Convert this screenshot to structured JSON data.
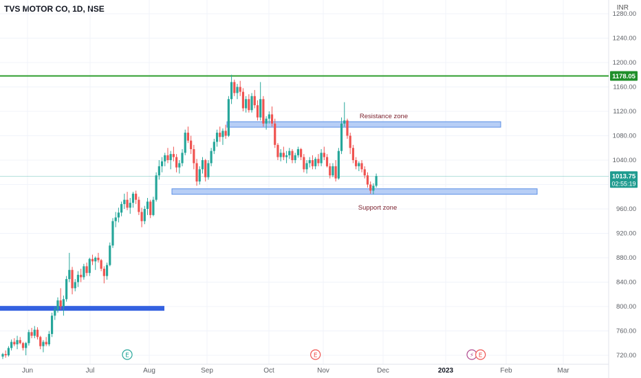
{
  "header": {
    "title": "TVS MOTOR CO, 1D, NSE",
    "currency": "INR"
  },
  "colors": {
    "up": "#26a69a",
    "down": "#ef5350",
    "grid": "#f0f3fa",
    "resistance_line": "#2e9e2e",
    "zone_fill": "#aac6f5",
    "zone_border": "#5b8fe6",
    "blue_line": "#3461e0",
    "text": "#5d6066"
  },
  "markers": [
    {
      "date_index": 43,
      "icon": "earnings-e-icon",
      "label": "E"
    },
    {
      "date_index": 108,
      "icon": "earnings-e-icon",
      "label": "E"
    },
    {
      "date_index": 162,
      "icon": "dividend-bolt-icon",
      "label": "⚡"
    },
    {
      "date_index": 165,
      "icon": "earnings-e-icon",
      "label": "E"
    }
  ],
  "chart_data": {
    "type": "candlestick",
    "title": "TVS MOTOR CO, 1D, NSE",
    "y_unit": "INR",
    "ylim": [
      713,
      1300
    ],
    "x_ticks": [
      "Jun",
      "Jul",
      "Aug",
      "Sep",
      "Oct",
      "Nov",
      "Dec",
      "2023",
      "Feb",
      "Mar"
    ],
    "y_ticks": [
      720,
      760,
      800,
      840,
      880,
      920,
      960,
      1000,
      1040,
      1080,
      1120,
      1160,
      1200,
      1240,
      1280
    ],
    "y_tick_labels": [
      "720.00",
      "760.00",
      "800.00",
      "840.00",
      "880.00",
      "920.00",
      "960.00",
      "",
      "1040.00",
      "1080.00",
      "1120.00",
      "1160.00",
      "1200.00",
      "1240.00",
      "1280.00"
    ],
    "horizontal_lines": [
      {
        "price": 1178.05,
        "label": "1178.05"
      }
    ],
    "current_price": {
      "price": 1013.75,
      "label": "1013.75",
      "countdown": "02:55:19"
    },
    "blue_level_line": {
      "price": 797
    },
    "zones": [
      {
        "label": "Resistance zone",
        "low": 1094,
        "high": 1103
      },
      {
        "label": "Support zone",
        "low": 984,
        "high": 993
      }
    ],
    "candles_ohlc": [
      [
        718,
        724,
        714,
        722
      ],
      [
        722,
        728,
        716,
        720
      ],
      [
        720,
        735,
        718,
        732
      ],
      [
        732,
        746,
        728,
        742
      ],
      [
        742,
        748,
        735,
        738
      ],
      [
        738,
        752,
        730,
        745
      ],
      [
        745,
        750,
        738,
        740
      ],
      [
        740,
        742,
        728,
        732
      ],
      [
        732,
        742,
        720,
        740
      ],
      [
        740,
        762,
        736,
        758
      ],
      [
        758,
        765,
        748,
        752
      ],
      [
        752,
        768,
        748,
        762
      ],
      [
        762,
        766,
        746,
        750
      ],
      [
        750,
        752,
        730,
        735
      ],
      [
        735,
        745,
        725,
        742
      ],
      [
        742,
        750,
        735,
        738
      ],
      [
        738,
        760,
        735,
        755
      ],
      [
        755,
        790,
        750,
        785
      ],
      [
        785,
        800,
        778,
        795
      ],
      [
        795,
        815,
        790,
        810
      ],
      [
        810,
        830,
        795,
        800
      ],
      [
        800,
        818,
        785,
        812
      ],
      [
        812,
        850,
        808,
        845
      ],
      [
        845,
        888,
        840,
        860
      ],
      [
        860,
        865,
        820,
        830
      ],
      [
        830,
        845,
        825,
        840
      ],
      [
        840,
        858,
        832,
        852
      ],
      [
        852,
        862,
        840,
        848
      ],
      [
        848,
        870,
        844,
        866
      ],
      [
        866,
        872,
        850,
        855
      ],
      [
        855,
        880,
        850,
        878
      ],
      [
        878,
        885,
        868,
        874
      ],
      [
        874,
        882,
        860,
        880
      ],
      [
        880,
        888,
        872,
        876
      ],
      [
        876,
        878,
        858,
        862
      ],
      [
        862,
        866,
        838,
        850
      ],
      [
        850,
        872,
        844,
        868
      ],
      [
        868,
        905,
        866,
        900
      ],
      [
        900,
        945,
        896,
        940
      ],
      [
        940,
        955,
        930,
        946
      ],
      [
        946,
        962,
        938,
        954
      ],
      [
        954,
        972,
        948,
        968
      ],
      [
        968,
        985,
        960,
        975
      ],
      [
        975,
        988,
        958,
        962
      ],
      [
        962,
        978,
        952,
        970
      ],
      [
        970,
        988,
        962,
        985
      ],
      [
        985,
        990,
        968,
        975
      ],
      [
        975,
        980,
        950,
        955
      ],
      [
        955,
        962,
        930,
        940
      ],
      [
        940,
        965,
        935,
        960
      ],
      [
        960,
        978,
        950,
        972
      ],
      [
        972,
        975,
        945,
        950
      ],
      [
        950,
        980,
        948,
        975
      ],
      [
        975,
        1020,
        972,
        1015
      ],
      [
        1015,
        1040,
        1008,
        1030
      ],
      [
        1030,
        1045,
        1020,
        1038
      ],
      [
        1038,
        1052,
        1030,
        1048
      ],
      [
        1048,
        1060,
        1035,
        1040
      ],
      [
        1040,
        1055,
        1025,
        1050
      ],
      [
        1050,
        1062,
        1038,
        1045
      ],
      [
        1045,
        1050,
        1020,
        1028
      ],
      [
        1028,
        1040,
        1018,
        1035
      ],
      [
        1035,
        1058,
        1030,
        1052
      ],
      [
        1052,
        1090,
        1048,
        1085
      ],
      [
        1085,
        1095,
        1068,
        1072
      ],
      [
        1072,
        1080,
        1050,
        1058
      ],
      [
        1058,
        1065,
        1025,
        1035
      ],
      [
        1035,
        1042,
        998,
        1005
      ],
      [
        1005,
        1030,
        1000,
        1025
      ],
      [
        1025,
        1045,
        1018,
        1040
      ],
      [
        1040,
        1042,
        1005,
        1012
      ],
      [
        1012,
        1040,
        1008,
        1035
      ],
      [
        1035,
        1060,
        1030,
        1055
      ],
      [
        1055,
        1075,
        1050,
        1070
      ],
      [
        1070,
        1090,
        1062,
        1085
      ],
      [
        1085,
        1095,
        1070,
        1078
      ],
      [
        1078,
        1092,
        1065,
        1088
      ],
      [
        1088,
        1098,
        1075,
        1080
      ],
      [
        1080,
        1145,
        1078,
        1140
      ],
      [
        1140,
        1180,
        1132,
        1168
      ],
      [
        1168,
        1172,
        1145,
        1150
      ],
      [
        1150,
        1165,
        1140,
        1160
      ],
      [
        1160,
        1170,
        1145,
        1152
      ],
      [
        1152,
        1158,
        1120,
        1125
      ],
      [
        1125,
        1145,
        1118,
        1140
      ],
      [
        1140,
        1148,
        1118,
        1122
      ],
      [
        1122,
        1150,
        1118,
        1145
      ],
      [
        1145,
        1155,
        1125,
        1130
      ],
      [
        1130,
        1138,
        1105,
        1110
      ],
      [
        1110,
        1168,
        1105,
        1140
      ],
      [
        1140,
        1145,
        1095,
        1100
      ],
      [
        1100,
        1112,
        1090,
        1108
      ],
      [
        1108,
        1120,
        1100,
        1115
      ],
      [
        1115,
        1128,
        1095,
        1100
      ],
      [
        1100,
        1108,
        1060,
        1065
      ],
      [
        1065,
        1068,
        1040,
        1045
      ],
      [
        1045,
        1058,
        1038,
        1052
      ],
      [
        1052,
        1062,
        1040,
        1045
      ],
      [
        1045,
        1055,
        1035,
        1048
      ],
      [
        1048,
        1060,
        1042,
        1055
      ],
      [
        1055,
        1058,
        1035,
        1040
      ],
      [
        1040,
        1052,
        1035,
        1048
      ],
      [
        1048,
        1062,
        1044,
        1058
      ],
      [
        1058,
        1060,
        1040,
        1045
      ],
      [
        1045,
        1050,
        1020,
        1025
      ],
      [
        1025,
        1040,
        1018,
        1035
      ],
      [
        1035,
        1045,
        1028,
        1040
      ],
      [
        1040,
        1048,
        1025,
        1030
      ],
      [
        1030,
        1045,
        1025,
        1042
      ],
      [
        1042,
        1050,
        1030,
        1035
      ],
      [
        1035,
        1058,
        1030,
        1052
      ],
      [
        1052,
        1062,
        1040,
        1045
      ],
      [
        1045,
        1050,
        1028,
        1030
      ],
      [
        1030,
        1035,
        1010,
        1015
      ],
      [
        1015,
        1035,
        1012,
        1030
      ],
      [
        1030,
        1040,
        1005,
        1010
      ],
      [
        1010,
        1060,
        1008,
        1055
      ],
      [
        1055,
        1110,
        1050,
        1100
      ],
      [
        1100,
        1135,
        1095,
        1105
      ],
      [
        1105,
        1108,
        1075,
        1080
      ],
      [
        1080,
        1085,
        1050,
        1060
      ],
      [
        1060,
        1065,
        1035,
        1040
      ],
      [
        1040,
        1045,
        1025,
        1030
      ],
      [
        1030,
        1038,
        1022,
        1035
      ],
      [
        1035,
        1040,
        1020,
        1025
      ],
      [
        1025,
        1030,
        1010,
        1015
      ],
      [
        1015,
        1020,
        995,
        1000
      ],
      [
        1000,
        1005,
        985,
        990
      ],
      [
        990,
        1002,
        984,
        998
      ],
      [
        998,
        1018,
        995,
        1013.75
      ]
    ]
  }
}
